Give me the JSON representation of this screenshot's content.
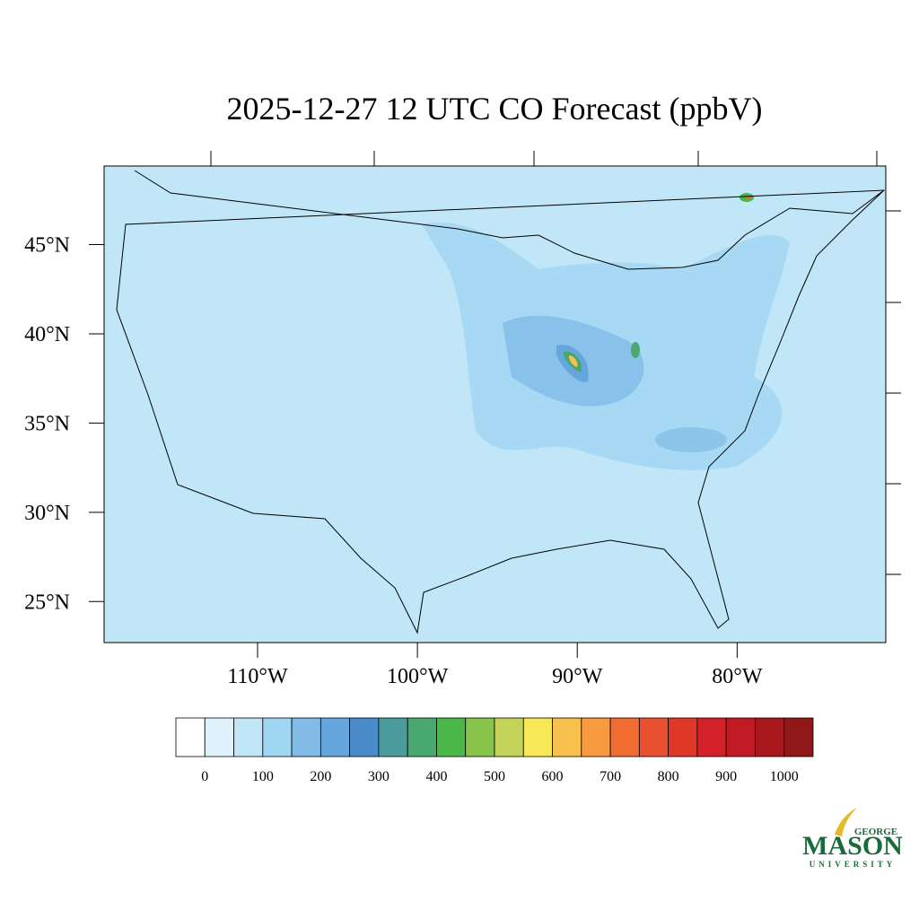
{
  "title": "2025-12-27 12 UTC CO Forecast (ppbV)",
  "map": {
    "xlim": [
      -119.6,
      -70.7
    ],
    "ylim": [
      22.7,
      49.4
    ],
    "lat_ticks": [
      {
        "value": 45,
        "label": "45°N"
      },
      {
        "value": 40,
        "label": "40°N"
      },
      {
        "value": 35,
        "label": "35°N"
      },
      {
        "value": 30,
        "label": "30°N"
      },
      {
        "value": 25,
        "label": "25°N"
      }
    ],
    "lon_ticks": [
      {
        "value": -110,
        "label": "110°W"
      },
      {
        "value": -100,
        "label": "100°W"
      },
      {
        "value": -90,
        "label": "90°W"
      },
      {
        "value": -80,
        "label": "80°W"
      }
    ]
  },
  "colorbar": {
    "clim": [
      -50,
      1050
    ],
    "colors": [
      "#ffffff",
      "#dff1fb",
      "#c0e6f8",
      "#a0d6f2",
      "#82bce6",
      "#66a6dc",
      "#4a8cca",
      "#4a9c9c",
      "#48a870",
      "#4ab848",
      "#88c44c",
      "#c4d45a",
      "#f8e858",
      "#f8c04c",
      "#f89a40",
      "#f06c30",
      "#e85030",
      "#e03828",
      "#d42028",
      "#c01a24",
      "#a8181c",
      "#901818"
    ],
    "ticks": [
      0,
      100,
      200,
      300,
      400,
      500,
      600,
      700,
      800,
      900,
      1000
    ]
  },
  "logo": {
    "top": "GEORGE",
    "name": "MASON",
    "bottom": "UNIVERSITY"
  }
}
